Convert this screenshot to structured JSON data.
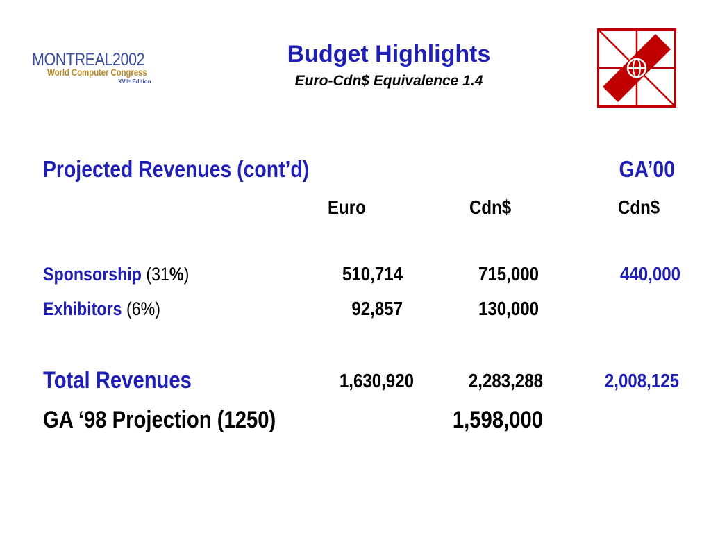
{
  "logo": {
    "main_text": "MONTREAL",
    "year": "2002",
    "subtitle": "World Computer Congress",
    "edition": "XVIIᵉ Edition"
  },
  "header": {
    "title": "Budget Highlights",
    "subtitle": "Euro-Cdn$ Equivalence 1.4"
  },
  "section": {
    "heading": "Projected Revenues (cont’d)",
    "ga_heading": "GA’00",
    "col_euro": "Euro",
    "col_cdn": "Cdn$",
    "col_ga_cdn": "Cdn$"
  },
  "rows": [
    {
      "label": "Sponsorship",
      "pct_open": " (31",
      "pct_sym": "%",
      "pct_close": ")",
      "euro": "510,714",
      "cdn": "715,000",
      "ga": "440,000"
    },
    {
      "label": "Exhibitors",
      "pct": " (6%)",
      "euro": "92,857",
      "cdn": "130,000",
      "ga": ""
    }
  ],
  "total": {
    "label": "Total Revenues",
    "euro": "1,630,920",
    "cdn": "2,283,288",
    "ga": "2,008,125"
  },
  "projection": {
    "label": "GA ‘98 Projection (1250)",
    "value": "1,598,000"
  },
  "colors": {
    "blue": "#1f1fb4",
    "emblem_red": "#c00000",
    "logo_blue": "#3b4e9c",
    "logo_gold": "#b88a2a"
  }
}
